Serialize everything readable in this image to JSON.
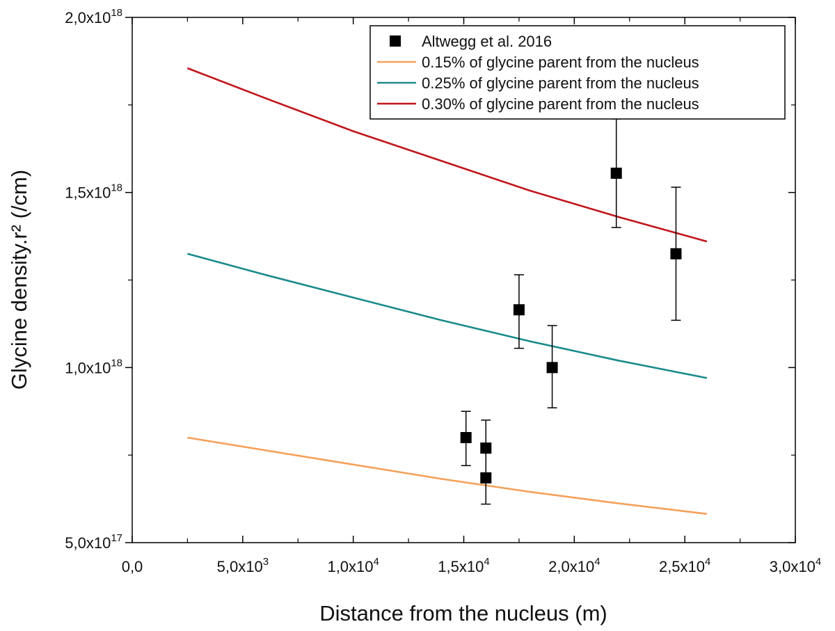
{
  "chart_data": {
    "type": "scatter",
    "title": "",
    "xlabel": "Distance from the nucleus (m)",
    "ylabel": "Glycine density.r² (/cm)",
    "xlim": [
      0,
      30000
    ],
    "ylim": [
      500000000000000000,
      2000000000000000000
    ],
    "x_ticks": [
      {
        "value": 0,
        "mantissa": "0,0",
        "exp": ""
      },
      {
        "value": 5000,
        "mantissa": "5,0x10",
        "exp": "3"
      },
      {
        "value": 10000,
        "mantissa": "1,0x10",
        "exp": "4"
      },
      {
        "value": 15000,
        "mantissa": "1,5x10",
        "exp": "4"
      },
      {
        "value": 20000,
        "mantissa": "2,0x10",
        "exp": "4"
      },
      {
        "value": 25000,
        "mantissa": "2,5x10",
        "exp": "4"
      },
      {
        "value": 30000,
        "mantissa": "3,0x10",
        "exp": "4"
      }
    ],
    "y_ticks": [
      {
        "value": 500000000000000000,
        "mantissa": "5,0x10",
        "exp": "17"
      },
      {
        "value": 1000000000000000000,
        "mantissa": "1,0x10",
        "exp": "18"
      },
      {
        "value": 1500000000000000000,
        "mantissa": "1,5x10",
        "exp": "18"
      },
      {
        "value": 2000000000000000000,
        "mantissa": "2,0x10",
        "exp": "18"
      }
    ],
    "x_minor_ticks": [
      2500,
      7500,
      12500,
      17500,
      22500,
      27500
    ],
    "y_minor_ticks": [
      750000000000000000,
      1250000000000000000,
      1750000000000000000
    ],
    "points": {
      "name": "Altwegg et al. 2016",
      "color": "#000000",
      "data": [
        {
          "x": 15100,
          "y": 800000000000000000,
          "err_low": 720000000000000000,
          "err_high": 875000000000000000
        },
        {
          "x": 16000,
          "y": 770000000000000000,
          "err_low": 690000000000000000,
          "err_high": 850000000000000000
        },
        {
          "x": 16000,
          "y": 685000000000000000,
          "err_low": 610000000000000000,
          "err_high": 760000000000000000
        },
        {
          "x": 17500,
          "y": 1165000000000000000,
          "err_low": 1055000000000000000,
          "err_high": 1265000000000000000
        },
        {
          "x": 19000,
          "y": 1000000000000000000,
          "err_low": 885000000000000000,
          "err_high": 1120000000000000000
        },
        {
          "x": 21900,
          "y": 1555000000000000000,
          "err_low": 1400000000000000000,
          "err_high": 1710000000000000000
        },
        {
          "x": 24600,
          "y": 1325000000000000000,
          "err_low": 1135000000000000000,
          "err_high": 1515000000000000000
        }
      ]
    },
    "series": [
      {
        "name": "0.15% of glycine parent from the nucleus",
        "color": "#f5a05a",
        "x": [
          2500,
          6000,
          10000,
          14000,
          18000,
          22000,
          26000
        ],
        "y": [
          800000000000000000,
          764000000000000000,
          723000000000000000,
          682000000000000000,
          645000000000000000,
          612000000000000000,
          582000000000000000
        ]
      },
      {
        "name": "0.25% of glycine parent from the nucleus",
        "color": "#1a8a8a",
        "x": [
          2500,
          6000,
          10000,
          14000,
          18000,
          22000,
          26000
        ],
        "y": [
          1325000000000000000,
          1265000000000000000,
          1200000000000000000,
          1135000000000000000,
          1075000000000000000,
          1020000000000000000,
          970000000000000000
        ]
      },
      {
        "name": "0.30% of glycine parent from the nucleus",
        "color": "#c0161c",
        "x": [
          2500,
          6000,
          10000,
          14000,
          18000,
          22000,
          26000
        ],
        "y": [
          1855000000000000000,
          1770000000000000000,
          1675000000000000000,
          1590000000000000000,
          1505000000000000000,
          1430000000000000000,
          1360000000000000000
        ]
      }
    ],
    "legend": {
      "position": "top-right"
    }
  }
}
